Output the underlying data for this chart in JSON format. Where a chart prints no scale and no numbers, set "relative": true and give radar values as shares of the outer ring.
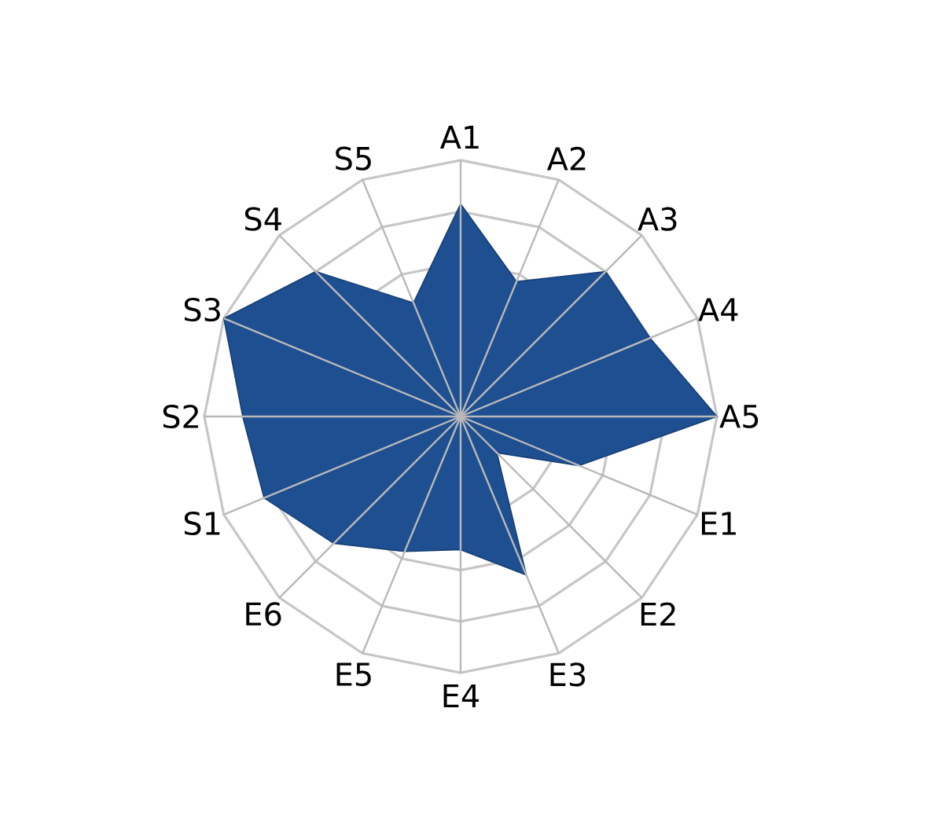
{
  "chart_data": {
    "type": "radar",
    "relative": true,
    "grid": true,
    "categories": [
      "A1",
      "A2",
      "A3",
      "A4",
      "A5",
      "E1",
      "E2",
      "E3",
      "E4",
      "E5",
      "E6",
      "S1",
      "S2",
      "S3",
      "S4",
      "S5"
    ],
    "series": [
      {
        "color": "#1d4f91",
        "values": [
          0.83,
          0.57,
          0.8,
          0.8,
          1.0,
          0.5,
          0.2,
          0.67,
          0.52,
          0.57,
          0.7,
          0.83,
          0.85,
          1.0,
          0.8,
          0.48
        ]
      }
    ]
  }
}
